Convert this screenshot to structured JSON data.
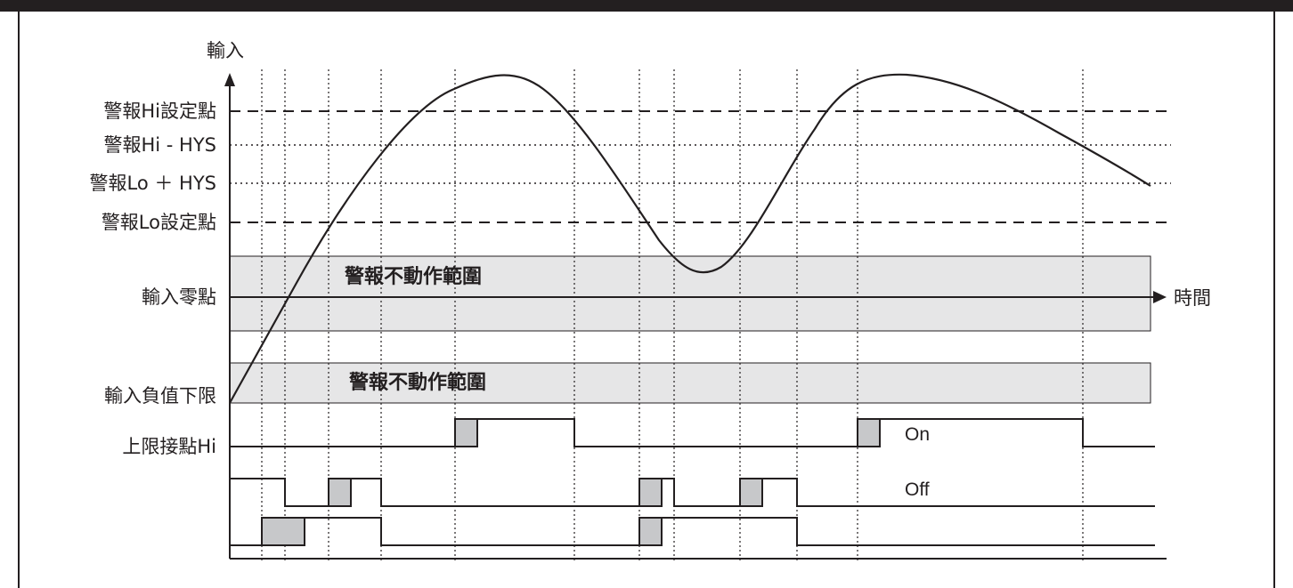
{
  "axis": {
    "y_label": "輸入",
    "x_label": "時間"
  },
  "levels": {
    "hi_set": "警報Hi設定點",
    "hi_minus_hys": "警報Hi - HYS",
    "lo_plus_hys": "警報Lo ＋ HYS",
    "lo_set": "警報Lo設定點",
    "zero": "輸入零點",
    "neg_limit": "輸入負值下限"
  },
  "bands": {
    "upper_label": "警報不動作範圍",
    "lower_label": "警報不動作範圍"
  },
  "contacts": {
    "hi_label": "上限接點Hi",
    "on_label": "On",
    "off_label": "Off"
  },
  "colors": {
    "frame": "#231f20",
    "band_fill": "#e6e6e7",
    "delay_fill": "#c7c8ca",
    "ink": "#231f20"
  }
}
